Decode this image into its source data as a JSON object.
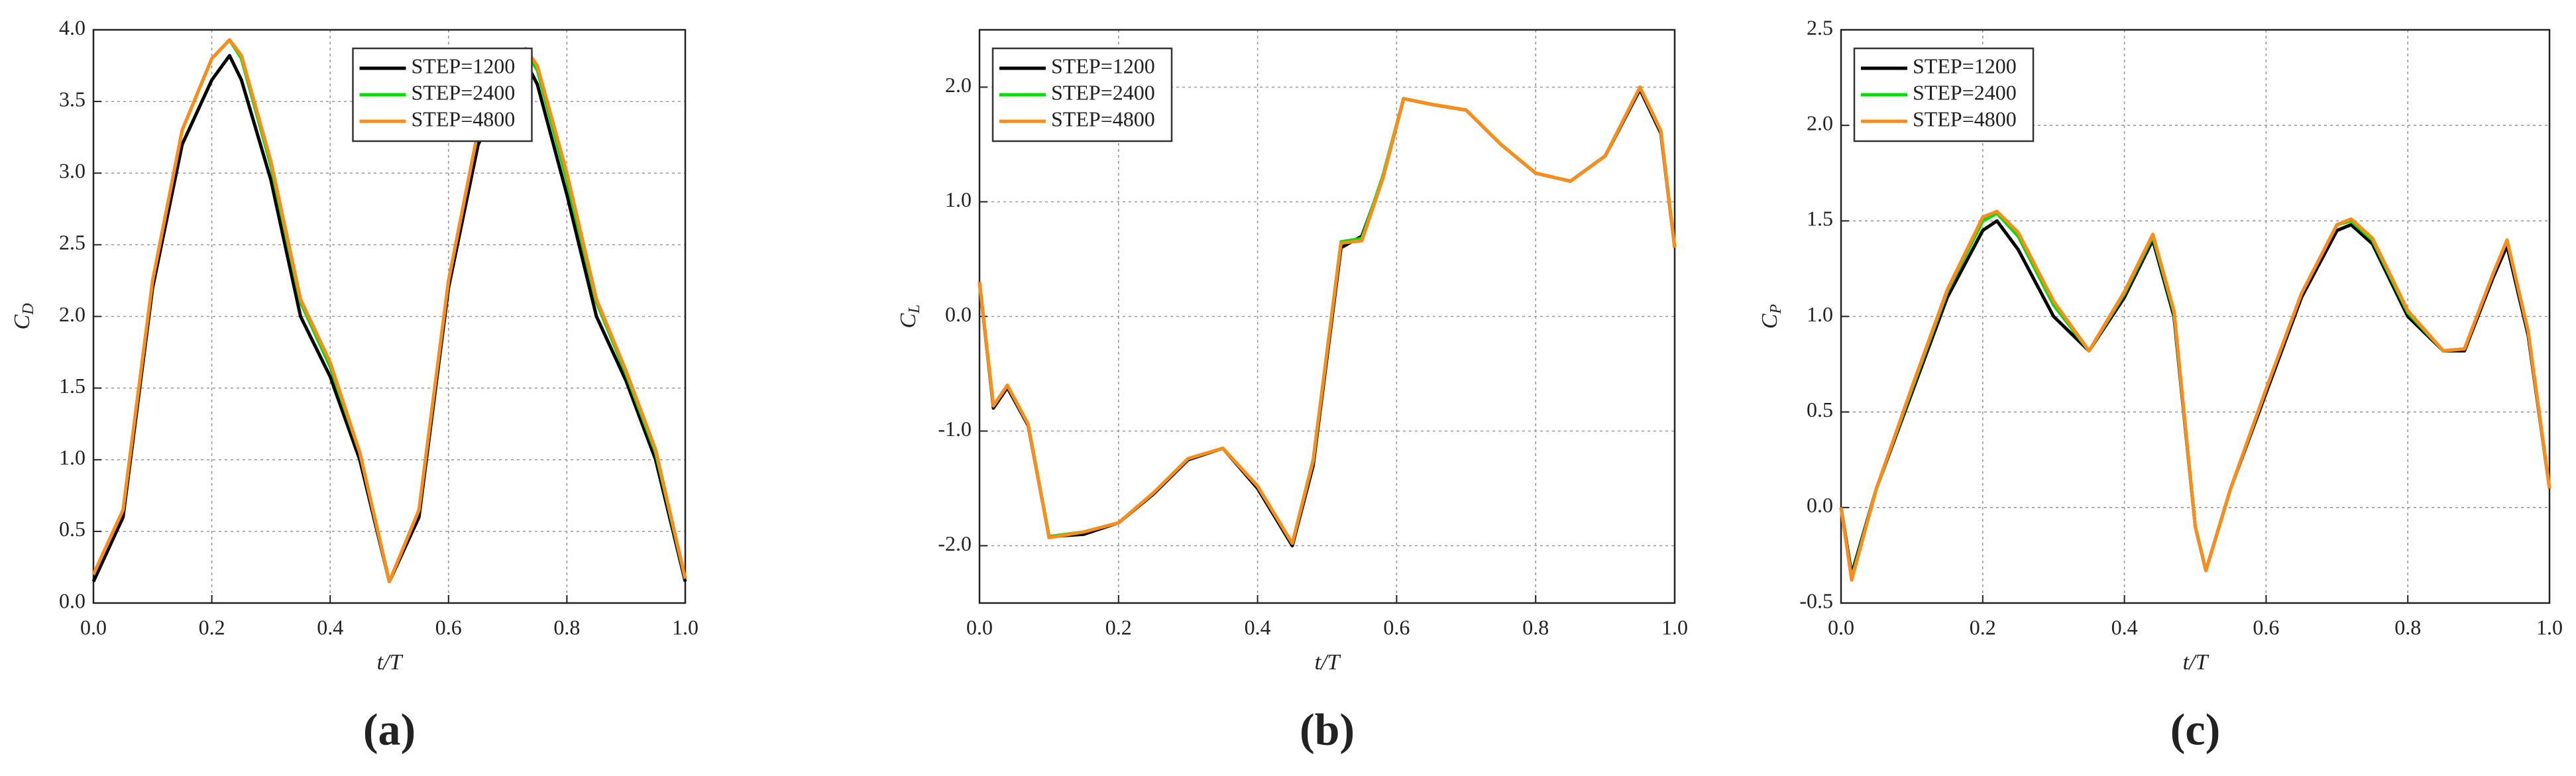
{
  "chart_data": [
    {
      "type": "line",
      "panel": "(a)",
      "xlabel": "t/T",
      "ylabel": "C",
      "ylabel_sub": "D",
      "legend": "upper center",
      "grid": true,
      "xlim": [
        0,
        1
      ],
      "ylim": [
        0,
        4
      ],
      "xticks": [
        {
          "value": 0,
          "label": "0.0"
        },
        0.2,
        0.4,
        0.6,
        0.8,
        {
          "value": 1,
          "label": "1.0"
        }
      ],
      "yticks": [
        {
          "value": 0,
          "label": "0.0"
        },
        0.5,
        {
          "value": 1,
          "label": "1.0"
        },
        1.5,
        {
          "value": 2,
          "label": "2.0"
        },
        2.5,
        {
          "value": 3,
          "label": "3.0"
        },
        3.5,
        {
          "value": 4,
          "label": "4.0"
        }
      ],
      "x": [
        0,
        0.05,
        0.1,
        0.15,
        0.2,
        0.23,
        0.25,
        0.3,
        0.35,
        0.4,
        0.45,
        0.5,
        0.55,
        0.6,
        0.65,
        0.7,
        0.73,
        0.75,
        0.8,
        0.85,
        0.9,
        0.95,
        1.0
      ],
      "series": [
        {
          "name": "STEP=1200",
          "color": "#000000",
          "values": [
            0.15,
            0.6,
            2.2,
            3.2,
            3.65,
            3.82,
            3.65,
            2.95,
            2.0,
            1.58,
            1.0,
            0.15,
            0.6,
            2.2,
            3.2,
            3.6,
            3.78,
            3.62,
            2.85,
            2.0,
            1.55,
            1.0,
            0.15
          ]
        },
        {
          "name": "STEP=2400",
          "color": "#00e000",
          "values": [
            0.2,
            0.65,
            2.25,
            3.3,
            3.8,
            3.93,
            3.8,
            3.05,
            2.1,
            1.65,
            1.05,
            0.15,
            0.65,
            2.25,
            3.3,
            3.7,
            3.85,
            3.72,
            2.95,
            2.1,
            1.6,
            1.05,
            0.17
          ]
        },
        {
          "name": "STEP=4800",
          "color": "#ff8c1a",
          "values": [
            0.2,
            0.65,
            2.25,
            3.3,
            3.8,
            3.93,
            3.82,
            3.08,
            2.12,
            1.68,
            1.05,
            0.15,
            0.65,
            2.25,
            3.3,
            3.72,
            3.87,
            3.75,
            3.0,
            2.12,
            1.62,
            1.07,
            0.17
          ]
        }
      ]
    },
    {
      "type": "line",
      "panel": "(b)",
      "xlabel": "t/T",
      "ylabel": "C",
      "ylabel_sub": "L",
      "legend": "upper left",
      "grid": true,
      "xlim": [
        0,
        1
      ],
      "ylim": [
        -2.5,
        2.5
      ],
      "xticks": [
        {
          "value": 0,
          "label": "0.0"
        },
        0.2,
        0.4,
        0.6,
        0.8,
        {
          "value": 1,
          "label": "1.0"
        }
      ],
      "yticks": [
        {
          "value": -2,
          "label": "-2.0"
        },
        {
          "value": -1,
          "label": "-1.0"
        },
        {
          "value": 0,
          "label": "0.0"
        },
        {
          "value": 1,
          "label": "1.0"
        },
        {
          "value": 2,
          "label": "2.0"
        }
      ],
      "x": [
        0,
        0.02,
        0.04,
        0.07,
        0.1,
        0.15,
        0.2,
        0.25,
        0.3,
        0.35,
        0.4,
        0.45,
        0.48,
        0.52,
        0.55,
        0.58,
        0.61,
        0.65,
        0.7,
        0.75,
        0.8,
        0.85,
        0.9,
        0.95,
        0.98,
        1.0
      ],
      "series": [
        {
          "name": "STEP=1200",
          "color": "#000000",
          "values": [
            0.3,
            -0.8,
            -0.62,
            -0.95,
            -1.92,
            -1.9,
            -1.8,
            -1.55,
            -1.25,
            -1.15,
            -1.5,
            -2.0,
            -1.3,
            0.6,
            0.7,
            1.2,
            1.9,
            1.85,
            1.8,
            1.5,
            1.25,
            1.18,
            1.4,
            1.98,
            1.6,
            0.6
          ]
        },
        {
          "name": "STEP=2400",
          "color": "#00e000",
          "values": [
            0.3,
            -0.78,
            -0.6,
            -0.94,
            -1.92,
            -1.88,
            -1.8,
            -1.54,
            -1.24,
            -1.15,
            -1.48,
            -1.98,
            -1.25,
            0.65,
            0.68,
            1.22,
            1.9,
            1.85,
            1.8,
            1.5,
            1.25,
            1.18,
            1.4,
            2.0,
            1.62,
            0.6
          ]
        },
        {
          "name": "STEP=4800",
          "color": "#ff8c1a",
          "values": [
            0.3,
            -0.78,
            -0.6,
            -0.94,
            -1.93,
            -1.88,
            -1.8,
            -1.54,
            -1.24,
            -1.15,
            -1.48,
            -1.98,
            -1.26,
            0.64,
            0.66,
            1.2,
            1.9,
            1.85,
            1.8,
            1.5,
            1.25,
            1.18,
            1.4,
            2.0,
            1.62,
            0.6
          ]
        }
      ]
    },
    {
      "type": "line",
      "panel": "(c)",
      "xlabel": "t/T",
      "ylabel": "C",
      "ylabel_sub": "P",
      "legend": "upper left",
      "grid": true,
      "xlim": [
        0,
        1
      ],
      "ylim": [
        -0.5,
        2.5
      ],
      "xticks": [
        {
          "value": 0,
          "label": "0.0"
        },
        0.2,
        0.4,
        0.6,
        0.8,
        {
          "value": 1,
          "label": "1.0"
        }
      ],
      "yticks": [
        -0.5,
        {
          "value": 0,
          "label": "0.0"
        },
        0.5,
        {
          "value": 1,
          "label": "1.0"
        },
        1.5,
        {
          "value": 2,
          "label": "2.0"
        },
        2.5
      ],
      "x": [
        0,
        0.015,
        0.05,
        0.1,
        0.15,
        0.2,
        0.22,
        0.25,
        0.3,
        0.35,
        0.4,
        0.44,
        0.47,
        0.5,
        0.515,
        0.55,
        0.6,
        0.65,
        0.7,
        0.72,
        0.75,
        0.8,
        0.85,
        0.88,
        0.92,
        0.94,
        0.97,
        1.0
      ],
      "series": [
        {
          "name": "STEP=1200",
          "color": "#000000",
          "values": [
            0,
            -0.35,
            0.1,
            0.6,
            1.1,
            1.45,
            1.5,
            1.35,
            1.0,
            0.82,
            1.1,
            1.4,
            1.0,
            -0.1,
            -0.33,
            0.1,
            0.6,
            1.1,
            1.45,
            1.48,
            1.38,
            1.0,
            0.82,
            0.82,
            1.2,
            1.37,
            0.9,
            0.1
          ]
        },
        {
          "name": "STEP=2400",
          "color": "#00e000",
          "values": [
            0,
            -0.37,
            0.1,
            0.62,
            1.13,
            1.5,
            1.54,
            1.42,
            1.06,
            0.82,
            1.12,
            1.42,
            1.02,
            -0.1,
            -0.33,
            0.1,
            0.62,
            1.12,
            1.48,
            1.5,
            1.4,
            1.02,
            0.82,
            0.83,
            1.22,
            1.4,
            0.92,
            0.1
          ]
        },
        {
          "name": "STEP=4800",
          "color": "#ff8c1a",
          "values": [
            0,
            -0.38,
            0.1,
            0.63,
            1.14,
            1.52,
            1.55,
            1.44,
            1.08,
            0.82,
            1.13,
            1.43,
            1.03,
            -0.1,
            -0.33,
            0.1,
            0.62,
            1.12,
            1.48,
            1.51,
            1.41,
            1.03,
            0.82,
            0.83,
            1.22,
            1.4,
            0.92,
            0.1
          ]
        }
      ]
    }
  ]
}
